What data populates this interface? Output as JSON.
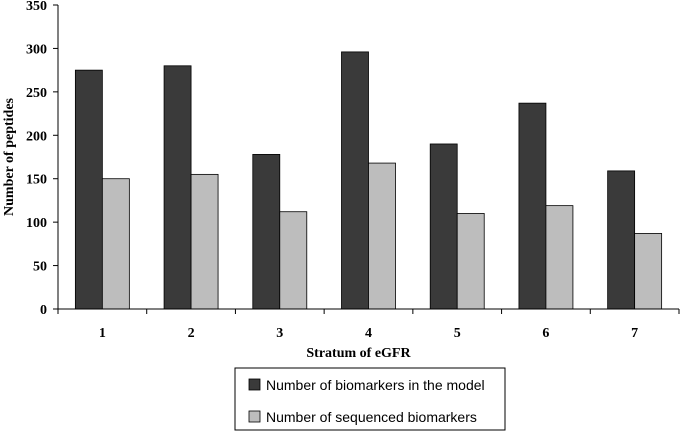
{
  "chart_data": {
    "type": "bar",
    "title": "",
    "xlabel": "Stratum of eGFR",
    "ylabel": "Number of peptides",
    "categories": [
      "1",
      "2",
      "3",
      "4",
      "5",
      "6",
      "7"
    ],
    "series": [
      {
        "name": "Number of biomarkers in the model",
        "values": [
          275,
          280,
          178,
          296,
          190,
          237,
          159
        ],
        "color": "#3a3a3a"
      },
      {
        "name": "Number of sequenced biomarkers",
        "values": [
          150,
          155,
          112,
          168,
          110,
          119,
          87
        ],
        "color": "#bdbdbd"
      }
    ],
    "ylim": [
      0,
      350
    ],
    "yticks": [
      0,
      50,
      100,
      150,
      200,
      250,
      300,
      350
    ],
    "grid": false,
    "legend_position": "bottom"
  }
}
